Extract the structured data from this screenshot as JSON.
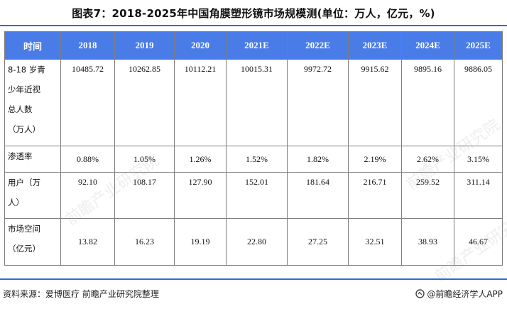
{
  "title": "图表7：2018-2025年中国角膜塑形镜市场规模测(单位：万人，亿元，%)",
  "table": {
    "header": {
      "label": "时间",
      "years": [
        "2018",
        "2019",
        "2020",
        "2021E",
        "2022E",
        "2023E",
        "2024E",
        "2025E"
      ]
    },
    "rows": [
      {
        "label_lines": [
          "8-18 岁青",
          "少年近视",
          "总人数",
          "（万人）"
        ],
        "values": [
          "10485.72",
          "10262.85",
          "10112.21",
          "10015.31",
          "9972.72",
          "9915.62",
          "9895.16",
          "9886.05"
        ]
      },
      {
        "label_lines": [
          "渗透率"
        ],
        "values": [
          "0.88%",
          "1.05%",
          "1.26%",
          "1.52%",
          "1.82%",
          "2.19%",
          "2.62%",
          "3.15%"
        ]
      },
      {
        "label_lines": [
          "用户（万",
          "人）"
        ],
        "values": [
          "92.10",
          "108.17",
          "127.90",
          "152.01",
          "181.64",
          "216.71",
          "259.52",
          "311.14"
        ]
      },
      {
        "label_lines": [
          "市场空间",
          "（亿元）"
        ],
        "values": [
          "13.82",
          "16.23",
          "19.19",
          "22.80",
          "27.25",
          "32.51",
          "38.93",
          "46.67"
        ]
      }
    ]
  },
  "watermark_text": "前瞻产业研究院",
  "footer": {
    "source": "资料来源：爱博医疗  前瞻产业研究院整理",
    "brand": "@前瞻经济学人APP"
  },
  "colors": {
    "header_bg": "#4a7ce8",
    "rule": "#2e6bd8",
    "grid_border": "#7d7d7d"
  },
  "icons": {
    "brand_logo": "qianzhan-logo-icon"
  }
}
